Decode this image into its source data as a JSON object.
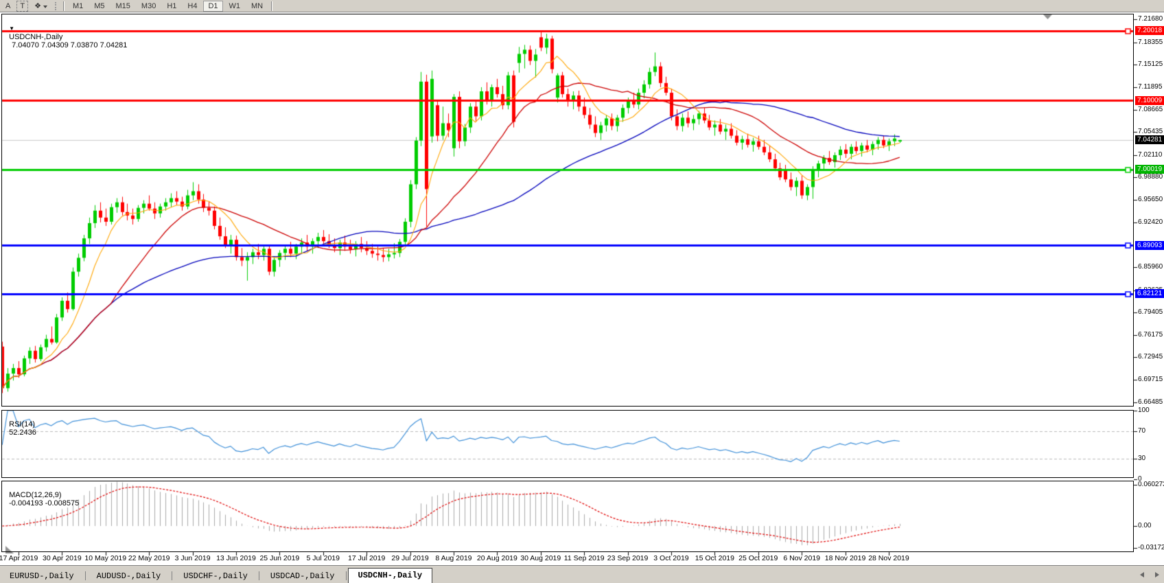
{
  "toolbar": {
    "annotation_buttons": [
      {
        "id": "label-tool",
        "label": "A"
      },
      {
        "id": "text-tool",
        "label": "T"
      },
      {
        "id": "arrows-tool",
        "label": "❖"
      }
    ],
    "timeframes": [
      "M1",
      "M5",
      "M15",
      "M30",
      "H1",
      "H4",
      "D1",
      "W1",
      "MN"
    ],
    "active_timeframe": "D1"
  },
  "chart": {
    "collapse_icon": "▼",
    "title": "USDCNH-,Daily",
    "ohlc_values": "7.04070 7.04309 7.03870 7.04281",
    "current_price": "7.04281"
  },
  "price_axis": {
    "ticks": [
      "7.21680",
      "7.18355",
      "7.15125",
      "7.11895",
      "7.08665",
      "7.05435",
      "7.02110",
      "6.98880",
      "6.95650",
      "6.92420",
      "6.85960",
      "6.82635",
      "6.79405",
      "6.76175",
      "6.72945",
      "6.69715",
      "6.66485"
    ]
  },
  "levels": [
    {
      "price": 7.20018,
      "label": "7.20018",
      "color": "#ff0000",
      "handle": true
    },
    {
      "price": 7.10009,
      "label": "7.10009",
      "color": "#ff0000",
      "handle": false
    },
    {
      "price": 7.00019,
      "label": "7.00019",
      "color": "#00cc00",
      "handle": true
    },
    {
      "price": 6.89093,
      "label": "6.89093",
      "color": "#0000ff",
      "handle": true
    },
    {
      "price": 6.82121,
      "label": "6.82121",
      "color": "#0000ff",
      "handle": true
    }
  ],
  "indicators": {
    "rsi": {
      "name": "RSI(14)",
      "value": "52.2436",
      "axis": [
        "100",
        "70",
        "30",
        "0"
      ],
      "axis_values": [
        100,
        70,
        30,
        0
      ],
      "dashed_levels": [
        70,
        30
      ]
    },
    "macd": {
      "name": "MACD(12,26,9)",
      "values": "-0.004193 -0.008575",
      "axis": [
        "0.060273",
        "0.00",
        "-0.031725"
      ],
      "axis_values": [
        0.060273,
        0,
        -0.031725
      ]
    }
  },
  "colors": {
    "candle_up": "#00cc00",
    "candle_down": "#ff0000",
    "ma_fast": "#ffa500",
    "ma_mid": "#cc0000",
    "ma_slow": "#0000bb",
    "rsi_line": "#3e8fd8",
    "rsi_dash": "#b8b8b8",
    "macd_hist": "#a8a8a8",
    "macd_signal": "#e00000",
    "price_line": "#c8c8c8",
    "badge_current_bg": "#000000"
  },
  "tabs": {
    "items": [
      "EURUSD-,Daily",
      "AUDUSD-,Daily",
      "USDCHF-,Daily",
      "USDCAD-,Daily",
      "USDCNH-,Daily"
    ],
    "active_index": 4
  },
  "chart_data": {
    "type": "candlestick",
    "symbol": "USDCNH",
    "timeframe": "Daily",
    "x_labels": [
      "17 Apr 2019",
      "30 Apr 2019",
      "10 May 2019",
      "22 May 2019",
      "3 Jun 2019",
      "13 Jun 2019",
      "25 Jun 2019",
      "5 Jul 2019",
      "17 Jul 2019",
      "29 Jul 2019",
      "8 Aug 2019",
      "20 Aug 2019",
      "30 Aug 2019",
      "11 Sep 2019",
      "23 Sep 2019",
      "3 Oct 2019",
      "15 Oct 2019",
      "25 Oct 2019",
      "6 Nov 2019",
      "18 Nov 2019",
      "28 Nov 2019"
    ],
    "x_tick_indices": [
      3,
      11,
      19,
      27,
      35,
      43,
      51,
      59,
      67,
      75,
      83,
      91,
      99,
      107,
      115,
      123,
      131,
      139,
      147,
      155,
      163
    ],
    "ylim": [
      6.6585,
      7.2249
    ],
    "overlays": [
      {
        "kind": "sma",
        "period": 8,
        "color_key": "ma_fast"
      },
      {
        "kind": "sma",
        "period": 21,
        "color_key": "ma_mid"
      },
      {
        "kind": "sma",
        "period": 55,
        "color_key": "ma_slow"
      }
    ],
    "rsi_period": 14,
    "macd_params": [
      12,
      26,
      9
    ],
    "candles": [
      [
        6.745,
        6.752,
        6.678,
        6.685
      ],
      [
        6.685,
        6.714,
        6.68,
        6.706
      ],
      [
        6.706,
        6.72,
        6.696,
        6.714
      ],
      [
        6.714,
        6.724,
        6.7,
        6.705
      ],
      [
        6.705,
        6.732,
        6.702,
        6.728
      ],
      [
        6.728,
        6.744,
        6.72,
        6.739
      ],
      [
        6.739,
        6.746,
        6.722,
        6.727
      ],
      [
        6.727,
        6.748,
        6.724,
        6.744
      ],
      [
        6.744,
        6.762,
        6.738,
        6.756
      ],
      [
        6.756,
        6.774,
        6.748,
        6.751
      ],
      [
        6.751,
        6.792,
        6.749,
        6.787
      ],
      [
        6.787,
        6.816,
        6.782,
        6.811
      ],
      [
        6.811,
        6.823,
        6.794,
        6.799
      ],
      [
        6.799,
        6.859,
        6.797,
        6.853
      ],
      [
        6.853,
        6.879,
        6.846,
        6.873
      ],
      [
        6.873,
        6.906,
        6.868,
        6.901
      ],
      [
        6.901,
        6.931,
        6.893,
        6.923
      ],
      [
        6.923,
        6.949,
        6.916,
        6.941
      ],
      [
        6.941,
        6.953,
        6.924,
        6.931
      ],
      [
        6.931,
        6.944,
        6.919,
        6.925
      ],
      [
        6.925,
        6.951,
        6.921,
        6.946
      ],
      [
        6.946,
        6.959,
        6.938,
        6.953
      ],
      [
        6.953,
        6.961,
        6.934,
        6.939
      ],
      [
        6.939,
        6.951,
        6.927,
        6.934
      ],
      [
        6.934,
        6.944,
        6.921,
        6.929
      ],
      [
        6.929,
        6.949,
        6.925,
        6.945
      ],
      [
        6.945,
        6.956,
        6.937,
        6.951
      ],
      [
        6.951,
        6.963,
        6.941,
        6.944
      ],
      [
        6.944,
        6.953,
        6.929,
        6.937
      ],
      [
        6.937,
        6.951,
        6.931,
        6.947
      ],
      [
        6.947,
        6.959,
        6.941,
        6.953
      ],
      [
        6.953,
        6.966,
        6.946,
        6.959
      ],
      [
        6.959,
        6.969,
        6.949,
        6.954
      ],
      [
        6.954,
        6.961,
        6.941,
        6.947
      ],
      [
        6.947,
        6.971,
        6.943,
        6.963
      ],
      [
        6.963,
        6.982,
        6.956,
        6.969
      ],
      [
        6.969,
        6.979,
        6.951,
        6.957
      ],
      [
        6.957,
        6.965,
        6.939,
        6.945
      ],
      [
        6.945,
        6.954,
        6.934,
        6.941
      ],
      [
        6.941,
        6.947,
        6.914,
        6.919
      ],
      [
        6.919,
        6.931,
        6.899,
        6.904
      ],
      [
        6.904,
        6.917,
        6.887,
        6.892
      ],
      [
        6.892,
        6.906,
        6.879,
        6.899
      ],
      [
        6.899,
        6.905,
        6.869,
        6.874
      ],
      [
        6.874,
        6.887,
        6.861,
        6.869
      ],
      [
        6.869,
        6.881,
        6.84,
        6.874
      ],
      [
        6.874,
        6.886,
        6.864,
        6.881
      ],
      [
        6.881,
        6.893,
        6.871,
        6.877
      ],
      [
        6.877,
        6.891,
        6.869,
        6.886
      ],
      [
        6.886,
        6.892,
        6.848,
        6.853
      ],
      [
        6.853,
        6.874,
        6.846,
        6.87
      ],
      [
        6.87,
        6.884,
        6.86,
        6.88
      ],
      [
        6.88,
        6.892,
        6.87,
        6.886
      ],
      [
        6.886,
        6.896,
        6.874,
        6.879
      ],
      [
        6.879,
        6.893,
        6.871,
        6.889
      ],
      [
        6.889,
        6.901,
        6.879,
        6.895
      ],
      [
        6.895,
        6.906,
        6.883,
        6.889
      ],
      [
        6.889,
        6.901,
        6.879,
        6.897
      ],
      [
        6.897,
        6.909,
        6.887,
        6.903
      ],
      [
        6.903,
        6.913,
        6.891,
        6.897
      ],
      [
        6.897,
        6.907,
        6.887,
        6.892
      ],
      [
        6.892,
        6.901,
        6.881,
        6.887
      ],
      [
        6.887,
        6.899,
        6.877,
        6.895
      ],
      [
        6.895,
        6.905,
        6.883,
        6.889
      ],
      [
        6.889,
        6.899,
        6.879,
        6.885
      ],
      [
        6.885,
        6.897,
        6.875,
        6.893
      ],
      [
        6.893,
        6.903,
        6.881,
        6.887
      ],
      [
        6.887,
        6.897,
        6.877,
        6.883
      ],
      [
        6.883,
        6.893,
        6.873,
        6.879
      ],
      [
        6.879,
        6.889,
        6.869,
        6.877
      ],
      [
        6.877,
        6.887,
        6.867,
        6.874
      ],
      [
        6.874,
        6.886,
        6.868,
        6.878
      ],
      [
        6.878,
        6.894,
        6.872,
        6.88
      ],
      [
        6.88,
        6.9,
        6.874,
        6.896
      ],
      [
        6.896,
        6.93,
        6.89,
        6.925
      ],
      [
        6.925,
        6.985,
        6.917,
        6.979
      ],
      [
        6.979,
        7.047,
        6.972,
        7.042
      ],
      [
        7.042,
        7.141,
        7.034,
        7.127
      ],
      [
        7.127,
        7.137,
        6.918,
        6.972
      ],
      [
        7.048,
        7.143,
        7.039,
        7.131
      ],
      [
        7.093,
        7.101,
        7.041,
        7.049
      ],
      [
        7.049,
        7.091,
        7.043,
        7.067
      ],
      [
        7.067,
        7.081,
        7.047,
        7.057
      ],
      [
        7.031,
        7.109,
        7.019,
        7.105
      ],
      [
        7.105,
        7.113,
        7.031,
        7.041
      ],
      [
        7.041,
        7.066,
        7.034,
        7.061
      ],
      [
        7.061,
        7.096,
        7.053,
        7.091
      ],
      [
        7.091,
        7.099,
        7.069,
        7.077
      ],
      [
        7.077,
        7.119,
        7.071,
        7.113
      ],
      [
        7.113,
        7.126,
        7.094,
        7.101
      ],
      [
        7.101,
        7.123,
        7.091,
        7.119
      ],
      [
        7.119,
        7.131,
        7.104,
        7.109
      ],
      [
        7.109,
        7.121,
        7.087,
        7.093
      ],
      [
        7.093,
        7.141,
        7.087,
        7.136
      ],
      [
        7.136,
        7.143,
        7.061,
        7.069
      ],
      [
        7.154,
        7.177,
        7.14,
        7.167
      ],
      [
        7.167,
        7.18,
        7.146,
        7.173
      ],
      [
        7.173,
        7.179,
        7.151,
        7.157
      ],
      [
        7.157,
        7.174,
        7.133,
        7.166
      ],
      [
        7.191,
        7.2002,
        7.171,
        7.176
      ],
      [
        7.176,
        7.196,
        7.167,
        7.189
      ],
      [
        7.189,
        7.193,
        7.139,
        7.145
      ],
      [
        7.104,
        7.139,
        7.097,
        7.136
      ],
      [
        7.136,
        7.141,
        7.104,
        7.109
      ],
      [
        7.109,
        7.117,
        7.091,
        7.099
      ],
      [
        7.099,
        7.113,
        7.087,
        7.107
      ],
      [
        7.107,
        7.114,
        7.084,
        7.091
      ],
      [
        7.091,
        7.104,
        7.074,
        7.079
      ],
      [
        7.079,
        7.089,
        7.059,
        7.065
      ],
      [
        7.065,
        7.077,
        7.047,
        7.053
      ],
      [
        7.053,
        7.069,
        7.043,
        7.064
      ],
      [
        7.064,
        7.079,
        7.055,
        7.074
      ],
      [
        7.074,
        7.081,
        7.057,
        7.063
      ],
      [
        7.063,
        7.079,
        7.055,
        7.075
      ],
      [
        7.075,
        7.094,
        7.069,
        7.089
      ],
      [
        7.089,
        7.104,
        7.081,
        7.099
      ],
      [
        7.099,
        7.111,
        7.089,
        7.094
      ],
      [
        7.094,
        7.117,
        7.087,
        7.111
      ],
      [
        7.111,
        7.129,
        7.103,
        7.123
      ],
      [
        7.123,
        7.147,
        7.117,
        7.141
      ],
      [
        7.141,
        7.169,
        7.135,
        7.149
      ],
      [
        7.149,
        7.155,
        7.119,
        7.125
      ],
      [
        7.125,
        7.134,
        7.107,
        7.111
      ],
      [
        7.111,
        7.117,
        7.071,
        7.077
      ],
      [
        7.077,
        7.087,
        7.057,
        7.063
      ],
      [
        7.063,
        7.081,
        7.055,
        7.075
      ],
      [
        7.075,
        7.084,
        7.061,
        7.067
      ],
      [
        7.067,
        7.079,
        7.057,
        7.073
      ],
      [
        7.073,
        7.085,
        7.065,
        7.081
      ],
      [
        7.081,
        7.089,
        7.067,
        7.071
      ],
      [
        7.071,
        7.079,
        7.057,
        7.061
      ],
      [
        7.061,
        7.071,
        7.049,
        7.065
      ],
      [
        7.065,
        7.073,
        7.051,
        7.055
      ],
      [
        7.055,
        7.065,
        7.043,
        7.059
      ],
      [
        7.059,
        7.067,
        7.045,
        7.049
      ],
      [
        7.049,
        7.057,
        7.035,
        7.039
      ],
      [
        7.039,
        7.049,
        7.029,
        7.044
      ],
      [
        7.044,
        7.052,
        7.032,
        7.036
      ],
      [
        7.036,
        7.046,
        7.026,
        7.041
      ],
      [
        7.041,
        7.049,
        7.029,
        7.033
      ],
      [
        7.033,
        7.043,
        7.021,
        7.025
      ],
      [
        7.025,
        7.035,
        7.011,
        7.015
      ],
      [
        7.015,
        7.023,
        6.998,
        7.002
      ],
      [
        7.002,
        7.01,
        6.985,
        6.989
      ],
      [
        6.999,
        7.007,
        6.982,
        6.986
      ],
      [
        6.986,
        6.996,
        6.97,
        6.975
      ],
      [
        6.975,
        6.989,
        6.962,
        6.984
      ],
      [
        6.984,
        6.992,
        6.958,
        6.963
      ],
      [
        6.963,
        6.979,
        6.956,
        6.975
      ],
      [
        6.975,
        7.005,
        6.958,
        7.001
      ],
      [
        7.001,
        7.013,
        6.989,
        7.009
      ],
      [
        7.009,
        7.021,
        6.999,
        7.017
      ],
      [
        7.017,
        7.027,
        7.007,
        7.011
      ],
      [
        7.011,
        7.025,
        7.003,
        7.021
      ],
      [
        7.021,
        7.034,
        7.014,
        7.029
      ],
      [
        7.029,
        7.037,
        7.017,
        7.023
      ],
      [
        7.023,
        7.037,
        7.015,
        7.033
      ],
      [
        7.033,
        7.041,
        7.023,
        7.027
      ],
      [
        7.027,
        7.039,
        7.019,
        7.035
      ],
      [
        7.035,
        7.043,
        7.025,
        7.029
      ],
      [
        7.029,
        7.041,
        7.021,
        7.037
      ],
      [
        7.037,
        7.047,
        7.029,
        7.043
      ],
      [
        7.043,
        7.049,
        7.031,
        7.035
      ],
      [
        7.035,
        7.045,
        7.027,
        7.041
      ],
      [
        7.041,
        7.051,
        7.034,
        7.045
      ],
      [
        7.0407,
        7.04309,
        7.0387,
        7.04281
      ]
    ],
    "hlines": [
      7.20018,
      7.10009,
      7.00019,
      6.89093,
      6.82121
    ],
    "current_price": 7.04281
  }
}
